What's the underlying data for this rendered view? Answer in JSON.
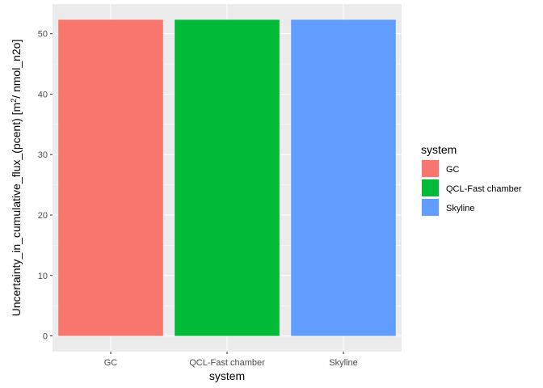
{
  "chart_data": {
    "type": "bar",
    "categories": [
      "GC",
      "QCL-Fast chamber",
      "Skyline"
    ],
    "values": [
      52.3,
      52.3,
      52.3
    ],
    "colors": [
      "#F8766D",
      "#00BA38",
      "#619CFF"
    ],
    "xlabel": "system",
    "ylabel": "Uncertainty_in_cumulative_flux_(pcent) [m",
    "ylabel_sup": "2",
    "ylabel_end": "/ nmol_n2o]",
    "ylim": [
      -2.6,
      54.9
    ],
    "yticks": [
      0,
      10,
      20,
      30,
      40,
      50
    ],
    "legend": {
      "title": "system",
      "entries": [
        "GC",
        "QCL-Fast chamber",
        "Skyline"
      ],
      "position": "right"
    },
    "panel_background": "#EBEBEB",
    "grid": true
  }
}
